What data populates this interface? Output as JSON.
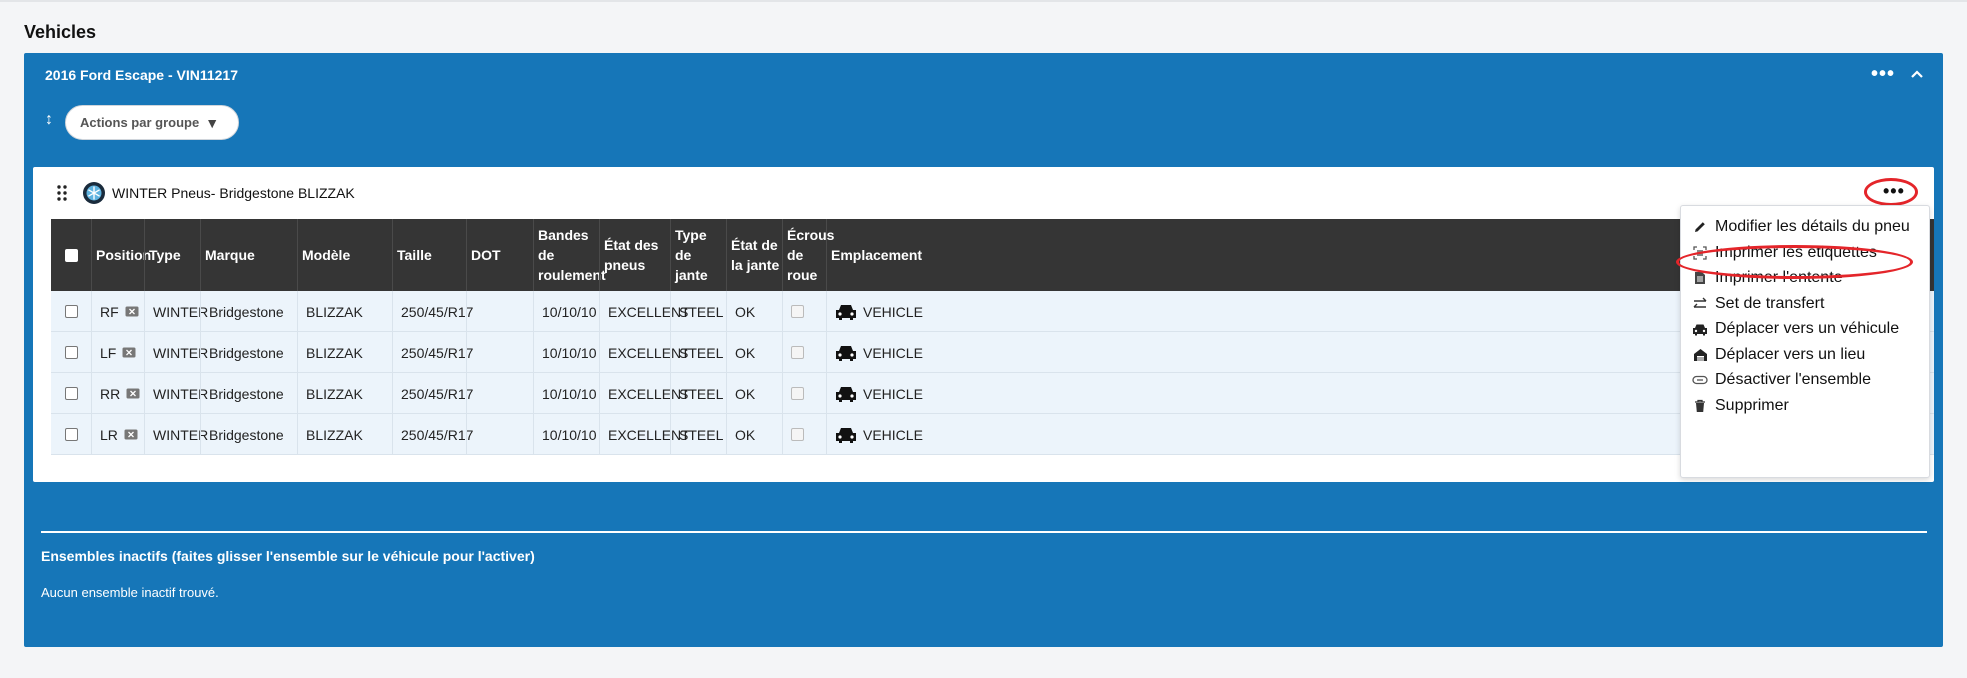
{
  "page": {
    "title": "Vehicles"
  },
  "vehicle": {
    "title": "2016 Ford Escape - VIN11217",
    "group_actions_label": "Actions par groupe"
  },
  "tire_set": {
    "title": "WINTER Pneus- Bridgestone BLIZZAK",
    "columns": [
      "Position",
      "Type",
      "Marque",
      "Modèle",
      "Taille",
      "DOT",
      "Bandes de roulement",
      "État des pneus",
      "Type de jante",
      "État de la jante",
      "Écrous de roue",
      "Emplacement"
    ],
    "rows": [
      {
        "position": "RF",
        "type": "WINTER",
        "brand": "Bridgestone",
        "model": "BLIZZAK",
        "size": "250/45/R17",
        "dot": "",
        "tread": "10/10/10",
        "tire_state": "EXCELLENT",
        "rim_type": "STEEL",
        "rim_state": "OK",
        "location": "VEHICLE"
      },
      {
        "position": "LF",
        "type": "WINTER",
        "brand": "Bridgestone",
        "model": "BLIZZAK",
        "size": "250/45/R17",
        "dot": "",
        "tread": "10/10/10",
        "tire_state": "EXCELLENT",
        "rim_type": "STEEL",
        "rim_state": "OK",
        "location": "VEHICLE"
      },
      {
        "position": "RR",
        "type": "WINTER",
        "brand": "Bridgestone",
        "model": "BLIZZAK",
        "size": "250/45/R17",
        "dot": "",
        "tread": "10/10/10",
        "tire_state": "EXCELLENT",
        "rim_type": "STEEL",
        "rim_state": "OK",
        "location": "VEHICLE"
      },
      {
        "position": "LR",
        "type": "WINTER",
        "brand": "Bridgestone",
        "model": "BLIZZAK",
        "size": "250/45/R17",
        "dot": "",
        "tread": "10/10/10",
        "tire_state": "EXCELLENT",
        "rim_type": "STEEL",
        "rim_state": "OK",
        "location": "VEHICLE"
      }
    ]
  },
  "menu": {
    "items": [
      {
        "label": "Modifier les détails du pneu",
        "icon": "pencil-icon"
      },
      {
        "label": "Imprimer les étiquettes",
        "icon": "label-scan-icon"
      },
      {
        "label": "Imprimer l'entente",
        "icon": "document-icon"
      },
      {
        "label": "Set de transfert",
        "icon": "transfer-arrows-icon"
      },
      {
        "label": "Déplacer vers un véhicule",
        "icon": "car-icon"
      },
      {
        "label": "Déplacer vers un lieu",
        "icon": "warehouse-icon"
      },
      {
        "label": "Désactiver l'ensemble",
        "icon": "link-off-icon"
      },
      {
        "label": "Supprimer",
        "icon": "trash-icon"
      }
    ]
  },
  "inactive": {
    "title": "Ensembles inactifs (faites glisser l'ensemble sur le véhicule pour l'activer)",
    "empty": "Aucun ensemble inactif trouvé."
  },
  "colors": {
    "panel_blue": "#1676b8",
    "header_dark": "#353535",
    "row_bg": "#ecf4fb",
    "annotation_red": "#e4252a"
  }
}
